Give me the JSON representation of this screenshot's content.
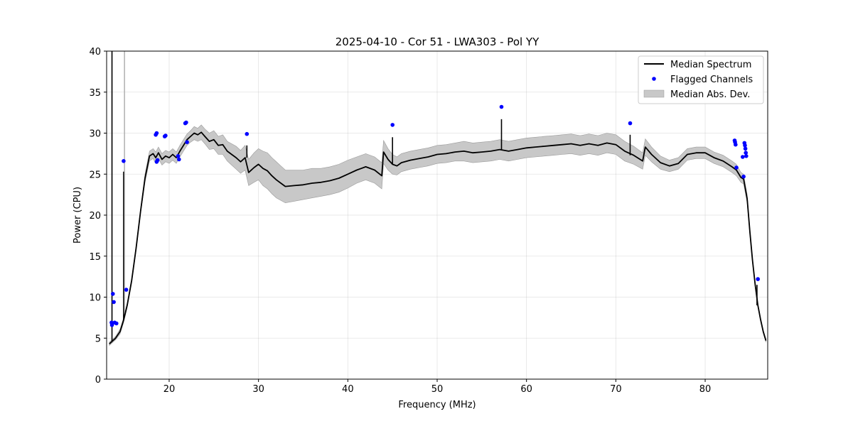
{
  "chart_data": {
    "type": "line",
    "title": "2025-04-10 - Cor 51 - LWA303 - Pol YY",
    "xlabel": "Frequency (MHz)",
    "ylabel": "Power (CPU)",
    "xlim": [
      13.0,
      87.0
    ],
    "ylim": [
      0,
      40
    ],
    "xticks": [
      20,
      30,
      40,
      50,
      60,
      70,
      80
    ],
    "yticks": [
      0,
      5,
      10,
      15,
      20,
      25,
      30,
      35,
      40
    ],
    "grid": true,
    "legend_position": "top-right",
    "legend": [
      {
        "label": "Median Spectrum",
        "kind": "line",
        "color": "#000000"
      },
      {
        "label": "Flagged Channels",
        "kind": "marker",
        "color": "#0000ff"
      },
      {
        "label": "Median Abs. Dev.",
        "kind": "band",
        "color": "#c8c8c8"
      }
    ],
    "series": [
      {
        "name": "Median Spectrum",
        "x": [
          13.3,
          13.6,
          14.0,
          14.5,
          14.9,
          15.3,
          15.8,
          16.3,
          16.8,
          17.3,
          17.8,
          18.2,
          18.5,
          18.8,
          19.2,
          19.6,
          20.0,
          20.4,
          20.8,
          21.2,
          21.6,
          22.0,
          22.4,
          22.8,
          23.2,
          23.6,
          24.0,
          24.5,
          25.0,
          25.5,
          26.0,
          26.5,
          27.0,
          27.5,
          28.0,
          28.5,
          28.9,
          29.5,
          30.0,
          30.5,
          31.0,
          31.5,
          32.0,
          32.5,
          33.0,
          34.0,
          35.0,
          36.0,
          37.0,
          38.0,
          39.0,
          40.0,
          41.0,
          42.0,
          43.0,
          43.8,
          44.0,
          44.5,
          45.0,
          45.5,
          46.0,
          47.0,
          48.0,
          49.0,
          50.0,
          51.0,
          52.0,
          53.0,
          54.0,
          55.0,
          56.0,
          57.0,
          58.0,
          59.0,
          60.0,
          61.0,
          62.0,
          63.0,
          64.0,
          65.0,
          66.0,
          67.0,
          68.0,
          69.0,
          70.0,
          71.0,
          72.0,
          73.0,
          73.3,
          74.0,
          75.0,
          76.0,
          77.0,
          78.0,
          79.0,
          80.0,
          81.0,
          82.0,
          83.0,
          83.5,
          84.0,
          84.3,
          84.7,
          85.0,
          85.3,
          85.6,
          85.9,
          86.2,
          86.5,
          86.8
        ],
        "median": [
          4.3,
          4.6,
          5.0,
          5.8,
          7.2,
          9.0,
          12.0,
          16.0,
          20.5,
          24.5,
          27.2,
          27.5,
          27.0,
          27.6,
          26.8,
          27.2,
          27.0,
          27.4,
          27.0,
          27.8,
          28.5,
          29.2,
          29.6,
          30.0,
          29.8,
          30.1,
          29.6,
          29.0,
          29.2,
          28.5,
          28.6,
          27.8,
          27.4,
          27.0,
          26.5,
          27.0,
          25.2,
          25.8,
          26.2,
          25.7,
          25.4,
          24.8,
          24.3,
          23.9,
          23.5,
          23.6,
          23.7,
          23.9,
          24.0,
          24.2,
          24.5,
          25.0,
          25.5,
          25.9,
          25.5,
          24.8,
          27.7,
          26.8,
          26.2,
          26.0,
          26.4,
          26.7,
          26.9,
          27.1,
          27.4,
          27.5,
          27.7,
          27.8,
          27.6,
          27.7,
          27.8,
          28.0,
          27.8,
          28.0,
          28.2,
          28.3,
          28.4,
          28.5,
          28.6,
          28.7,
          28.5,
          28.7,
          28.5,
          28.8,
          28.6,
          27.8,
          27.3,
          26.6,
          28.3,
          27.4,
          26.4,
          26.0,
          26.3,
          27.4,
          27.6,
          27.6,
          27.0,
          26.6,
          25.9,
          25.5,
          24.6,
          24.4,
          22.0,
          18.0,
          14.5,
          11.5,
          9.0,
          7.3,
          5.8,
          4.7
        ],
        "mad_low": [
          4.1,
          4.4,
          4.8,
          5.5,
          6.9,
          8.7,
          11.7,
          15.7,
          20.2,
          24.0,
          26.6,
          26.9,
          26.3,
          26.9,
          26.1,
          26.5,
          26.3,
          26.7,
          26.3,
          27.1,
          27.8,
          28.5,
          28.9,
          29.2,
          29.0,
          29.2,
          28.7,
          28.0,
          28.1,
          27.4,
          27.4,
          26.6,
          26.1,
          25.6,
          25.1,
          25.5,
          23.6,
          24.0,
          24.3,
          23.6,
          23.2,
          22.6,
          22.1,
          21.8,
          21.5,
          21.7,
          21.9,
          22.1,
          22.3,
          22.5,
          22.8,
          23.3,
          23.9,
          24.3,
          23.9,
          23.2,
          26.3,
          25.5,
          25.0,
          24.9,
          25.3,
          25.6,
          25.8,
          26.0,
          26.3,
          26.4,
          26.6,
          26.6,
          26.4,
          26.5,
          26.6,
          26.8,
          26.6,
          26.8,
          27.0,
          27.1,
          27.2,
          27.3,
          27.4,
          27.5,
          27.3,
          27.5,
          27.3,
          27.6,
          27.4,
          26.6,
          26.2,
          25.6,
          27.3,
          26.5,
          25.6,
          25.3,
          25.6,
          26.7,
          26.9,
          26.9,
          26.3,
          25.9,
          25.2,
          24.8,
          24.0,
          23.8,
          21.5,
          17.6,
          14.2,
          11.2,
          8.8,
          7.1,
          5.6,
          4.5
        ],
        "mad_high": [
          4.5,
          4.8,
          5.2,
          6.1,
          7.5,
          9.3,
          12.3,
          16.3,
          20.8,
          25.0,
          27.8,
          28.1,
          27.7,
          28.3,
          27.5,
          27.9,
          27.7,
          28.1,
          27.7,
          28.5,
          29.2,
          29.9,
          30.3,
          30.8,
          30.6,
          31.0,
          30.5,
          30.0,
          30.3,
          29.6,
          29.8,
          29.0,
          28.7,
          28.4,
          27.9,
          28.5,
          26.8,
          27.6,
          28.1,
          27.8,
          27.6,
          27.0,
          26.5,
          26.0,
          25.5,
          25.5,
          25.5,
          25.7,
          25.7,
          25.9,
          26.2,
          26.7,
          27.1,
          27.5,
          27.1,
          26.4,
          29.1,
          28.1,
          27.4,
          27.1,
          27.5,
          27.8,
          28.0,
          28.2,
          28.5,
          28.6,
          28.8,
          29.0,
          28.8,
          28.9,
          29.0,
          29.2,
          29.0,
          29.2,
          29.4,
          29.5,
          29.6,
          29.7,
          29.8,
          29.9,
          29.7,
          29.9,
          29.7,
          30.0,
          29.8,
          29.0,
          28.4,
          27.6,
          29.3,
          28.3,
          27.2,
          26.7,
          27.0,
          28.1,
          28.3,
          28.3,
          27.7,
          27.3,
          26.6,
          26.2,
          25.2,
          25.0,
          22.5,
          18.4,
          14.8,
          11.8,
          9.2,
          7.5,
          6.0,
          4.9
        ]
      }
    ],
    "spikes": [
      {
        "x": 13.6,
        "y": 40.0
      },
      {
        "x": 14.9,
        "y": 25.3
      },
      {
        "x": 28.7,
        "y": 28.5
      },
      {
        "x": 45.0,
        "y": 29.5
      },
      {
        "x": 57.2,
        "y": 31.7
      },
      {
        "x": 71.6,
        "y": 29.8
      },
      {
        "x": 85.8,
        "y": 11.5
      }
    ],
    "flagged_channels": [
      {
        "x": 13.55,
        "y": 6.9
      },
      {
        "x": 13.6,
        "y": 6.6
      },
      {
        "x": 13.7,
        "y": 10.4
      },
      {
        "x": 13.8,
        "y": 9.4
      },
      {
        "x": 13.9,
        "y": 6.9
      },
      {
        "x": 14.1,
        "y": 6.8
      },
      {
        "x": 14.9,
        "y": 26.6
      },
      {
        "x": 15.2,
        "y": 10.9
      },
      {
        "x": 18.5,
        "y": 29.8
      },
      {
        "x": 18.6,
        "y": 30.0
      },
      {
        "x": 18.6,
        "y": 26.5
      },
      {
        "x": 18.7,
        "y": 26.7
      },
      {
        "x": 19.5,
        "y": 29.6
      },
      {
        "x": 19.6,
        "y": 29.7
      },
      {
        "x": 21.0,
        "y": 27.2
      },
      {
        "x": 21.1,
        "y": 26.8
      },
      {
        "x": 21.8,
        "y": 31.2
      },
      {
        "x": 21.9,
        "y": 31.3
      },
      {
        "x": 22.0,
        "y": 28.9
      },
      {
        "x": 28.7,
        "y": 29.9
      },
      {
        "x": 45.0,
        "y": 31.0
      },
      {
        "x": 57.2,
        "y": 33.2
      },
      {
        "x": 71.6,
        "y": 31.2
      },
      {
        "x": 83.3,
        "y": 29.1
      },
      {
        "x": 83.35,
        "y": 28.9
      },
      {
        "x": 83.4,
        "y": 28.6
      },
      {
        "x": 83.5,
        "y": 25.8
      },
      {
        "x": 84.2,
        "y": 27.1
      },
      {
        "x": 84.4,
        "y": 28.8
      },
      {
        "x": 84.45,
        "y": 28.5
      },
      {
        "x": 84.5,
        "y": 28.1
      },
      {
        "x": 84.55,
        "y": 27.6
      },
      {
        "x": 84.6,
        "y": 27.2
      },
      {
        "x": 84.3,
        "y": 24.7
      },
      {
        "x": 85.9,
        "y": 12.2
      }
    ]
  }
}
